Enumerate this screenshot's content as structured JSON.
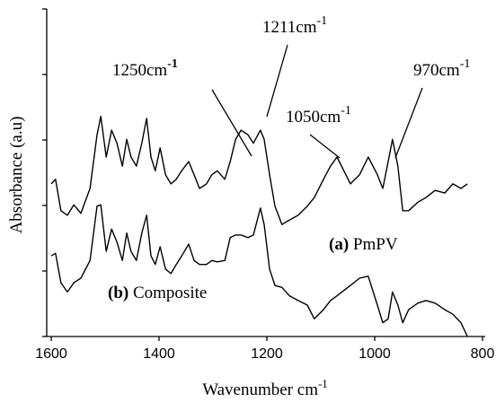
{
  "chart_data": {
    "type": "line",
    "x_label": {
      "text": "Wavenumber cm",
      "sup": "-1"
    },
    "y_label": "Absorbance (a.u)",
    "xlim": [
      1600,
      800
    ],
    "xticks": [
      1600,
      1400,
      1200,
      1000,
      800
    ],
    "ylim": [
      0,
      5
    ],
    "yticks": [
      0,
      1,
      2,
      3,
      4,
      5
    ],
    "x": [
      1600,
      1592,
      1582,
      1570,
      1558,
      1545,
      1528,
      1515,
      1508,
      1498,
      1488,
      1478,
      1468,
      1460,
      1452,
      1442,
      1432,
      1423,
      1415,
      1407,
      1398,
      1388,
      1378,
      1368,
      1358,
      1345,
      1335,
      1325,
      1312,
      1302,
      1292,
      1278,
      1268,
      1258,
      1248,
      1235,
      1225,
      1212,
      1205,
      1195,
      1185,
      1172,
      1158,
      1142,
      1125,
      1112,
      1095,
      1082,
      1070,
      1045,
      1028,
      1012,
      995,
      985,
      975,
      967,
      957,
      948,
      937,
      920,
      905,
      888,
      870,
      855,
      840,
      828
    ],
    "series": [
      {
        "name": "PmPV",
        "tag": "(a)",
        "color": "#000000",
        "values": [
          2.33,
          2.4,
          1.92,
          1.85,
          2.01,
          1.88,
          2.26,
          3.08,
          3.36,
          2.74,
          3.15,
          2.95,
          2.6,
          3.01,
          2.74,
          2.6,
          2.95,
          3.33,
          2.74,
          2.53,
          2.88,
          2.47,
          2.33,
          2.4,
          2.53,
          2.67,
          2.47,
          2.26,
          2.33,
          2.47,
          2.53,
          2.4,
          2.67,
          3.01,
          3.15,
          3.08,
          2.95,
          3.15,
          3.01,
          2.47,
          1.99,
          1.71,
          1.78,
          1.85,
          1.99,
          2.12,
          2.4,
          2.6,
          2.74,
          2.33,
          2.47,
          2.74,
          2.47,
          2.26,
          2.67,
          3.01,
          2.6,
          1.92,
          1.92,
          2.05,
          2.12,
          2.23,
          2.19,
          2.33,
          2.26,
          2.33
        ]
      },
      {
        "name": "Composite",
        "tag": "(b)",
        "color": "#000000",
        "values": [
          1.23,
          1.27,
          0.82,
          0.68,
          0.82,
          0.89,
          1.16,
          1.99,
          2.01,
          1.3,
          1.64,
          1.44,
          1.16,
          1.58,
          1.3,
          1.16,
          1.58,
          1.85,
          1.23,
          1.1,
          1.37,
          1.03,
          0.96,
          1.1,
          1.23,
          1.41,
          1.16,
          1.1,
          1.1,
          1.16,
          1.14,
          1.16,
          1.51,
          1.55,
          1.55,
          1.51,
          1.55,
          1.96,
          1.71,
          1.03,
          0.78,
          0.75,
          0.62,
          0.55,
          0.48,
          0.27,
          0.41,
          0.55,
          0.62,
          0.78,
          0.89,
          0.92,
          0.48,
          0.21,
          0.27,
          0.68,
          0.48,
          0.21,
          0.41,
          0.51,
          0.55,
          0.51,
          0.41,
          0.34,
          0.21,
          0
        ]
      }
    ],
    "annotations": [
      {
        "text": "1250cm",
        "sup": "-1"
      },
      {
        "text": "1211cm",
        "sup": "-1"
      },
      {
        "text": "1050cm",
        "sup": "-1"
      },
      {
        "text": "970cm",
        "sup": "-1"
      }
    ]
  }
}
